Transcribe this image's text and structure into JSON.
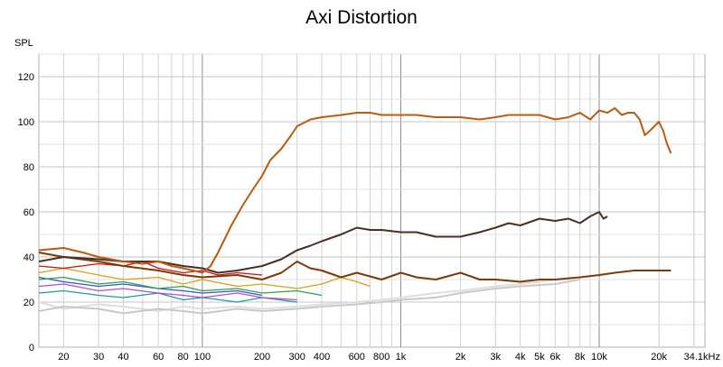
{
  "chart_data": {
    "type": "line",
    "title": "Axi Distortion",
    "ylabel": "SPL",
    "xlabel": "",
    "xscale": "log",
    "xlim": [
      15,
      34100
    ],
    "ylim": [
      0,
      130
    ],
    "grid": true,
    "x_ticks": [
      {
        "v": 20,
        "label": "20"
      },
      {
        "v": 30,
        "label": "30"
      },
      {
        "v": 40,
        "label": "40"
      },
      {
        "v": 60,
        "label": "60"
      },
      {
        "v": 80,
        "label": "80"
      },
      {
        "v": 100,
        "label": "100"
      },
      {
        "v": 200,
        "label": "200"
      },
      {
        "v": 300,
        "label": "300"
      },
      {
        "v": 400,
        "label": "400"
      },
      {
        "v": 600,
        "label": "600"
      },
      {
        "v": 800,
        "label": "800"
      },
      {
        "v": 1000,
        "label": "1k"
      },
      {
        "v": 2000,
        "label": "2k"
      },
      {
        "v": 3000,
        "label": "3k"
      },
      {
        "v": 4000,
        "label": "4k"
      },
      {
        "v": 5000,
        "label": "5k"
      },
      {
        "v": 6000,
        "label": "6k"
      },
      {
        "v": 8000,
        "label": "8k"
      },
      {
        "v": 10000,
        "label": "10k"
      },
      {
        "v": 20000,
        "label": "20k"
      },
      {
        "v": 34100,
        "label": "34.1kHz"
      }
    ],
    "y_ticks": [
      {
        "v": 0,
        "label": "0"
      },
      {
        "v": 20,
        "label": "20"
      },
      {
        "v": 40,
        "label": "40"
      },
      {
        "v": 60,
        "label": "60"
      },
      {
        "v": 80,
        "label": "80"
      },
      {
        "v": 100,
        "label": "100"
      },
      {
        "v": 120,
        "label": "120"
      }
    ],
    "series": [
      {
        "color": "#b85c14",
        "width": 2,
        "x": [
          15,
          20,
          25,
          30,
          40,
          50,
          60,
          70,
          80,
          90,
          100,
          110,
          120,
          140,
          160,
          180,
          200,
          220,
          250,
          280,
          300,
          350,
          400,
          500,
          600,
          700,
          800,
          900,
          1000,
          1200,
          1500,
          2000,
          2500,
          3000,
          3500,
          4000,
          5000,
          6000,
          7000,
          8000,
          9000,
          10000,
          11000,
          12000,
          13000,
          14000,
          15000,
          16000,
          17000,
          18000,
          19000,
          20000,
          21000,
          22000,
          23000
        ],
        "y": [
          43,
          44,
          42,
          40,
          38,
          37,
          38,
          36,
          35,
          34,
          33,
          36,
          42,
          54,
          63,
          70,
          76,
          83,
          88,
          94,
          98,
          101,
          102,
          103,
          104,
          104,
          103,
          103,
          103,
          103,
          102,
          102,
          101,
          102,
          103,
          103,
          103,
          101,
          102,
          104,
          101,
          105,
          104,
          106,
          103,
          104,
          104,
          101,
          94,
          96,
          98,
          100,
          96,
          90,
          86
        ]
      },
      {
        "color": "#4a2f28",
        "width": 2,
        "x": [
          15,
          20,
          30,
          40,
          60,
          80,
          100,
          120,
          150,
          200,
          250,
          300,
          350,
          400,
          500,
          600,
          700,
          800,
          1000,
          1200,
          1500,
          2000,
          2500,
          3000,
          3500,
          4000,
          5000,
          6000,
          7000,
          8000,
          9000,
          10000,
          10500,
          11000
        ],
        "y": [
          38,
          40,
          39,
          38,
          38,
          36,
          35,
          33,
          34,
          36,
          39,
          43,
          45,
          47,
          50,
          53,
          52,
          52,
          51,
          51,
          49,
          49,
          51,
          53,
          55,
          54,
          57,
          56,
          57,
          55,
          58,
          60,
          57,
          58
        ]
      },
      {
        "color": "#7a3a0c",
        "width": 2,
        "x": [
          15,
          20,
          30,
          40,
          60,
          80,
          100,
          150,
          200,
          250,
          300,
          350,
          400,
          500,
          600,
          800,
          1000,
          1200,
          1500,
          2000,
          2500,
          3000,
          4000,
          5000,
          6000,
          8000,
          10000,
          12000,
          15000,
          20000,
          23000
        ],
        "y": [
          42,
          40,
          38,
          36,
          34,
          32,
          31,
          32,
          30,
          33,
          38,
          35,
          34,
          31,
          33,
          30,
          33,
          31,
          30,
          33,
          30,
          30,
          29,
          30,
          30,
          31,
          32,
          33,
          34,
          34,
          34
        ]
      },
      {
        "color": "#cc1111",
        "width": 1.3,
        "x": [
          15,
          20,
          30,
          40,
          50,
          60,
          80,
          100,
          120,
          150,
          200
        ],
        "y": [
          36,
          35,
          37,
          36,
          38,
          35,
          33,
          34,
          32,
          33,
          32
        ]
      },
      {
        "color": "#d4a21c",
        "width": 1.3,
        "x": [
          15,
          20,
          30,
          40,
          60,
          80,
          100,
          150,
          200,
          300,
          400,
          500,
          600,
          700
        ],
        "y": [
          33,
          35,
          32,
          30,
          31,
          28,
          30,
          27,
          28,
          26,
          28,
          31,
          29,
          27
        ]
      },
      {
        "color": "#2ea04a",
        "width": 1.3,
        "x": [
          15,
          20,
          30,
          40,
          60,
          80,
          100,
          150,
          200,
          300,
          400
        ],
        "y": [
          30,
          31,
          28,
          29,
          26,
          27,
          25,
          26,
          24,
          25,
          23
        ]
      },
      {
        "color": "#3355cc",
        "width": 1.3,
        "x": [
          15,
          20,
          30,
          40,
          60,
          80,
          100,
          150,
          200
        ],
        "y": [
          31,
          29,
          27,
          28,
          26,
          25,
          24,
          25,
          23
        ]
      },
      {
        "color": "#b04fbf",
        "width": 1.3,
        "x": [
          15,
          20,
          30,
          40,
          60,
          80,
          100,
          150,
          200,
          300
        ],
        "y": [
          27,
          28,
          25,
          26,
          24,
          23,
          22,
          24,
          22,
          21
        ]
      },
      {
        "color": "#1f9a9a",
        "width": 1.3,
        "x": [
          15,
          20,
          30,
          40,
          60,
          80,
          100,
          150,
          200,
          300
        ],
        "y": [
          24,
          25,
          23,
          22,
          24,
          21,
          22,
          20,
          22,
          20
        ]
      },
      {
        "color": "#c8c8c8",
        "width": 2,
        "x": [
          15,
          20,
          30,
          40,
          60,
          80,
          100,
          150,
          200,
          300,
          400,
          600,
          800,
          1000,
          1500,
          2000,
          3000,
          4000,
          6000,
          8000
        ],
        "y": [
          16,
          18,
          17,
          15,
          17,
          16,
          15,
          17,
          16,
          17,
          18,
          19,
          20,
          21,
          22,
          24,
          26,
          27,
          28,
          30
        ]
      },
      {
        "color": "#dedede",
        "width": 2,
        "x": [
          15,
          20,
          30,
          40,
          60,
          80,
          100,
          150,
          200,
          300,
          400,
          600,
          800,
          1000,
          1500,
          2000,
          3000,
          4000,
          5000,
          6000,
          7000
        ],
        "y": [
          20,
          17,
          19,
          18,
          16,
          18,
          17,
          18,
          17,
          18,
          19,
          20,
          21,
          22,
          24,
          25,
          27,
          28,
          29,
          30,
          30
        ]
      }
    ]
  }
}
